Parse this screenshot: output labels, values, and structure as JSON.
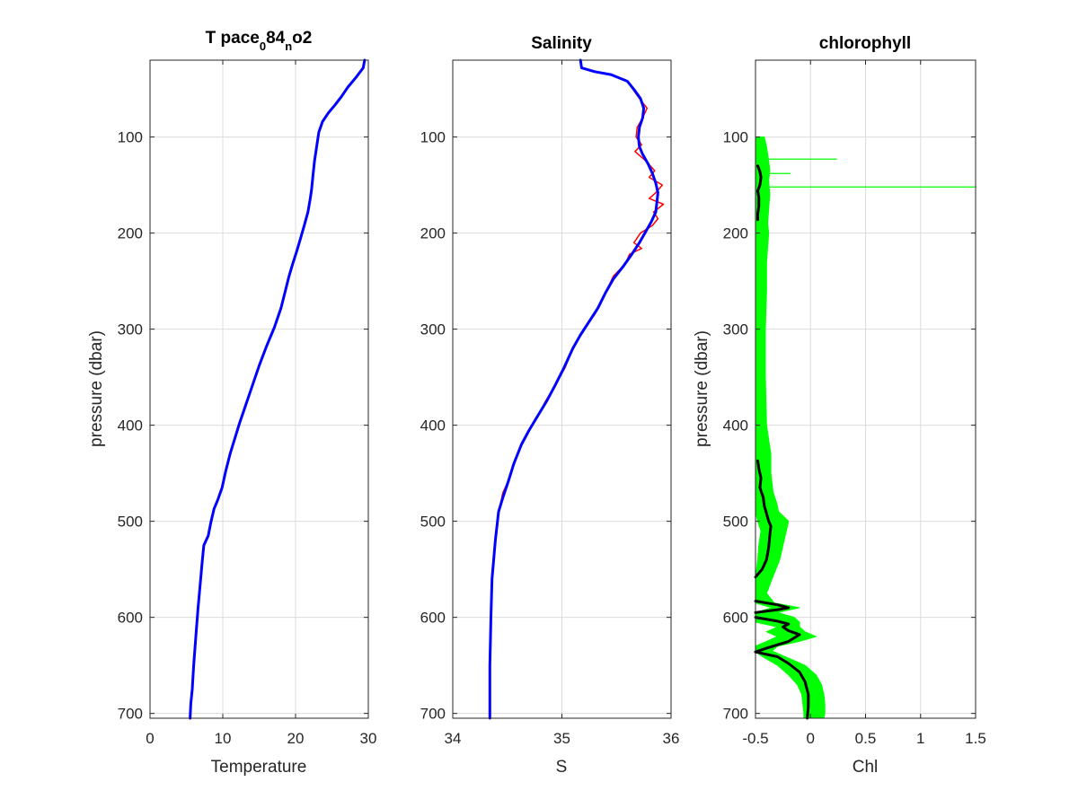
{
  "figure": {
    "background": "#ffffff"
  },
  "chart_data": [
    {
      "type": "line",
      "title": {
        "base": "T pace",
        "sub1": "0",
        "mid": "84",
        "sub2": "n",
        "end": "o2"
      },
      "xlabel": "Temperature",
      "ylabel": "pressure (dbar)",
      "xlim": [
        0,
        30
      ],
      "ylim": [
        20,
        705
      ],
      "y_reversed": true,
      "grid": true,
      "xticks": [
        0,
        10,
        20,
        30
      ],
      "xtick_labels": [
        "0",
        "10",
        "20",
        "30"
      ],
      "yticks": [
        100,
        200,
        300,
        400,
        500,
        600,
        700
      ],
      "ytick_labels": [
        "100",
        "200",
        "300",
        "400",
        "500",
        "600",
        "700"
      ],
      "series": [
        {
          "color": "#0000ff",
          "points": [
            [
              29.5,
              20
            ],
            [
              29.3,
              28
            ],
            [
              28.3,
              38
            ],
            [
              27.2,
              48
            ],
            [
              26.3,
              58
            ],
            [
              25.5,
              66
            ],
            [
              24.5,
              75
            ],
            [
              23.7,
              84
            ],
            [
              23.2,
              95
            ],
            [
              22.9,
              110
            ],
            [
              22.6,
              125
            ],
            [
              22.4,
              140
            ],
            [
              22.2,
              155
            ],
            [
              22.0,
              165
            ],
            [
              21.7,
              178
            ],
            [
              21.2,
              192
            ],
            [
              20.7,
              205
            ],
            [
              20.2,
              218
            ],
            [
              19.6,
              232
            ],
            [
              19.1,
              245
            ],
            [
              18.6,
              260
            ],
            [
              18.0,
              278
            ],
            [
              17.1,
              298
            ],
            [
              16.0,
              318
            ],
            [
              15.0,
              338
            ],
            [
              14.1,
              358
            ],
            [
              13.2,
              378
            ],
            [
              12.3,
              398
            ],
            [
              11.6,
              415
            ],
            [
              11.0,
              430
            ],
            [
              10.4,
              448
            ],
            [
              9.9,
              465
            ],
            [
              9.3,
              478
            ],
            [
              8.8,
              487
            ],
            [
              8.4,
              500
            ],
            [
              8.0,
              515
            ],
            [
              7.4,
              525
            ],
            [
              7.2,
              540
            ],
            [
              6.9,
              565
            ],
            [
              6.6,
              590
            ],
            [
              6.3,
              620
            ],
            [
              6.0,
              650
            ],
            [
              5.8,
              675
            ],
            [
              5.6,
              690
            ],
            [
              5.5,
              705
            ]
          ]
        }
      ]
    },
    {
      "type": "line",
      "title": "Salinity",
      "xlabel": "S",
      "ylabel": "",
      "xlim": [
        34,
        36
      ],
      "ylim": [
        20,
        705
      ],
      "y_reversed": true,
      "grid": true,
      "xticks": [
        34,
        35,
        36
      ],
      "xtick_labels": [
        "34",
        "35",
        "36"
      ],
      "yticks": [
        100,
        200,
        300,
        400,
        500,
        600,
        700
      ],
      "ytick_labels": [
        "100",
        "200",
        "300",
        "400",
        "500",
        "600",
        "700"
      ],
      "series": [
        {
          "color": "#ff0000",
          "points": [
            [
              35.17,
              20
            ],
            [
              35.18,
              28
            ],
            [
              35.3,
              32
            ],
            [
              35.45,
              35
            ],
            [
              35.6,
              42
            ],
            [
              35.66,
              52
            ],
            [
              35.71,
              60
            ],
            [
              35.78,
              70
            ],
            [
              35.74,
              80
            ],
            [
              35.69,
              90
            ],
            [
              35.68,
              100
            ],
            [
              35.73,
              108
            ],
            [
              35.67,
              115
            ],
            [
              35.77,
              125
            ],
            [
              35.85,
              135
            ],
            [
              35.8,
              142
            ],
            [
              35.92,
              150
            ],
            [
              35.86,
              158
            ],
            [
              35.8,
              164
            ],
            [
              35.93,
              170
            ],
            [
              35.84,
              178
            ],
            [
              35.88,
              185
            ],
            [
              35.83,
              192
            ],
            [
              35.72,
              200
            ],
            [
              35.66,
              210
            ],
            [
              35.73,
              216
            ],
            [
              35.62,
              222
            ],
            [
              35.58,
              232
            ],
            [
              35.47,
              245
            ],
            [
              35.41,
              260
            ],
            [
              35.35,
              275
            ],
            [
              35.3,
              285
            ],
            [
              35.2,
              300
            ],
            [
              35.1,
              320
            ],
            [
              35.03,
              340
            ],
            [
              34.94,
              358
            ],
            [
              34.85,
              375
            ],
            [
              34.78,
              390
            ],
            [
              34.7,
              405
            ],
            [
              34.63,
              420
            ],
            [
              34.56,
              440
            ],
            [
              34.52,
              455
            ],
            [
              34.46,
              470
            ],
            [
              34.42,
              490
            ],
            [
              34.39,
              520
            ],
            [
              34.36,
              560
            ],
            [
              34.35,
              600
            ],
            [
              34.34,
              650
            ],
            [
              34.34,
              705
            ]
          ]
        },
        {
          "color": "#0000ff",
          "points": [
            [
              35.17,
              20
            ],
            [
              35.18,
              28
            ],
            [
              35.3,
              32
            ],
            [
              35.45,
              35
            ],
            [
              35.6,
              42
            ],
            [
              35.67,
              52
            ],
            [
              35.72,
              60
            ],
            [
              35.75,
              70
            ],
            [
              35.74,
              80
            ],
            [
              35.71,
              90
            ],
            [
              35.7,
              100
            ],
            [
              35.71,
              110
            ],
            [
              35.74,
              118
            ],
            [
              35.79,
              128
            ],
            [
              35.83,
              138
            ],
            [
              35.86,
              148
            ],
            [
              35.88,
              158
            ],
            [
              35.87,
              168
            ],
            [
              35.86,
              178
            ],
            [
              35.82,
              188
            ],
            [
              35.77,
              198
            ],
            [
              35.71,
              210
            ],
            [
              35.64,
              222
            ],
            [
              35.56,
              235
            ],
            [
              35.47,
              248
            ],
            [
              35.4,
              262
            ],
            [
              35.33,
              278
            ],
            [
              35.25,
              292
            ],
            [
              35.17,
              306
            ],
            [
              35.1,
              320
            ],
            [
              35.02,
              340
            ],
            [
              34.94,
              358
            ],
            [
              34.86,
              375
            ],
            [
              34.78,
              390
            ],
            [
              34.7,
              405
            ],
            [
              34.63,
              420
            ],
            [
              34.56,
              440
            ],
            [
              34.51,
              458
            ],
            [
              34.46,
              475
            ],
            [
              34.42,
              490
            ],
            [
              34.39,
              520
            ],
            [
              34.36,
              560
            ],
            [
              34.35,
              600
            ],
            [
              34.34,
              650
            ],
            [
              34.34,
              705
            ]
          ]
        }
      ]
    },
    {
      "type": "line",
      "title": "chlorophyll",
      "xlabel": "Chl",
      "ylabel": "pressure (dbar)",
      "xlim": [
        -0.5,
        1.5
      ],
      "ylim": [
        20,
        705
      ],
      "y_reversed": true,
      "grid": true,
      "xticks": [
        -0.5,
        0,
        0.5,
        1,
        1.5
      ],
      "xtick_labels": [
        "-0.5",
        "0",
        "0.5",
        "1",
        "1.5"
      ],
      "yticks": [
        100,
        200,
        300,
        400,
        500,
        600,
        700
      ],
      "ytick_labels": [
        "100",
        "200",
        "300",
        "400",
        "500",
        "600",
        "700"
      ],
      "raw_envelope": {
        "color": "#00ff00",
        "depths": [
          100,
          110,
          125,
          135,
          145,
          160,
          175,
          190,
          200,
          230,
          260,
          300,
          350,
          400,
          430,
          450,
          470,
          480,
          490,
          500,
          510,
          525,
          540,
          560,
          575,
          585,
          590,
          595,
          600,
          605,
          610,
          615,
          620,
          625,
          630,
          635,
          640,
          650,
          660,
          670,
          680,
          690,
          700,
          705
        ],
        "left": [
          -0.5,
          -0.5,
          -0.5,
          -0.5,
          -0.5,
          -0.5,
          -0.5,
          -0.5,
          -0.5,
          -0.5,
          -0.5,
          -0.5,
          -0.5,
          -0.5,
          -0.5,
          -0.5,
          -0.5,
          -0.5,
          -0.5,
          -0.48,
          -0.45,
          -0.47,
          -0.48,
          -0.5,
          -0.5,
          -0.5,
          -0.35,
          -0.5,
          -0.5,
          -0.5,
          -0.3,
          -0.4,
          -0.3,
          -0.4,
          -0.5,
          -0.5,
          -0.45,
          -0.3,
          -0.2,
          -0.12,
          -0.08,
          -0.07,
          -0.06,
          -0.06
        ],
        "right": [
          -0.42,
          -0.4,
          -0.38,
          -0.37,
          -0.38,
          -0.37,
          -0.38,
          -0.39,
          -0.38,
          -0.4,
          -0.4,
          -0.41,
          -0.41,
          -0.4,
          -0.36,
          -0.36,
          -0.34,
          -0.31,
          -0.29,
          -0.2,
          -0.22,
          -0.25,
          -0.28,
          -0.35,
          -0.4,
          -0.33,
          -0.1,
          -0.3,
          -0.15,
          -0.1,
          -0.1,
          -0.05,
          0.05,
          -0.1,
          -0.3,
          -0.35,
          -0.25,
          -0.05,
          0.05,
          0.1,
          0.12,
          0.13,
          0.13,
          0.12
        ]
      },
      "spikes": [
        {
          "depth": 123,
          "value": 0.24
        },
        {
          "depth": 138,
          "value": -0.18
        },
        {
          "depth": 152,
          "value": 1.5
        }
      ],
      "series": [
        {
          "name": "",
          "color": "#000000",
          "segments": [
            [
              [
                -0.48,
                130
              ],
              [
                -0.46,
                136
              ],
              [
                -0.45,
                142
              ],
              [
                -0.46,
                150
              ],
              [
                -0.48,
                156
              ],
              [
                -0.47,
                163
              ],
              [
                -0.47,
                172
              ],
              [
                -0.48,
                180
              ],
              [
                -0.48,
                186
              ]
            ],
            [
              [
                -0.48,
                437
              ],
              [
                -0.47,
                445
              ],
              [
                -0.45,
                455
              ],
              [
                -0.46,
                465
              ],
              [
                -0.43,
                475
              ],
              [
                -0.42,
                484
              ],
              [
                -0.4,
                492
              ],
              [
                -0.38,
                500
              ],
              [
                -0.36,
                505
              ],
              [
                -0.37,
                515
              ],
              [
                -0.38,
                527
              ],
              [
                -0.4,
                540
              ],
              [
                -0.44,
                550
              ],
              [
                -0.5,
                558
              ]
            ],
            [
              [
                -0.5,
                583
              ],
              [
                -0.3,
                587
              ],
              [
                -0.2,
                590
              ],
              [
                -0.3,
                592
              ],
              [
                -0.5,
                595
              ]
            ],
            [
              [
                -0.5,
                600
              ],
              [
                -0.3,
                604
              ],
              [
                -0.2,
                607
              ],
              [
                -0.25,
                610
              ],
              [
                -0.2,
                614
              ],
              [
                -0.1,
                618
              ],
              [
                -0.2,
                625
              ],
              [
                -0.4,
                632
              ],
              [
                -0.5,
                636
              ]
            ],
            [
              [
                -0.5,
                636
              ],
              [
                -0.3,
                641
              ],
              [
                -0.2,
                648
              ],
              [
                -0.1,
                657
              ],
              [
                -0.05,
                667
              ],
              [
                -0.02,
                680
              ],
              [
                -0.02,
                693
              ],
              [
                -0.03,
                705
              ]
            ]
          ]
        }
      ]
    }
  ]
}
